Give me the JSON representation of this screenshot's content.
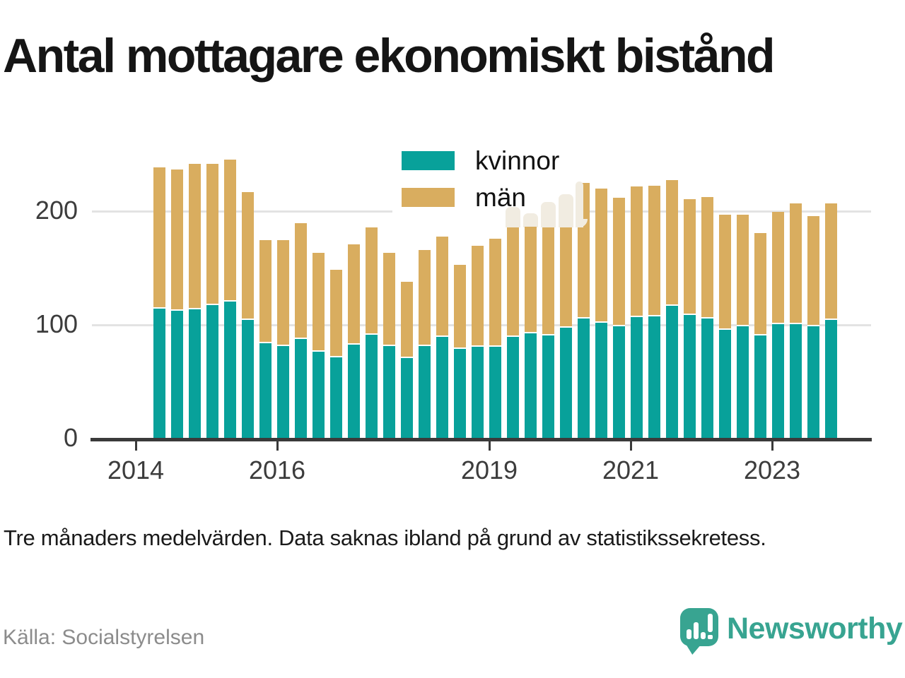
{
  "title": "Antal mottagare ekonomiskt bistånd",
  "subtitle": "Tre månaders medelvärden. Data saknas ibland på grund av statistikssekretess.",
  "source": "Källa: Socialstyrelsen",
  "brand": {
    "name": "Newsworthy",
    "icon": "newsworthy-speech-bubble-chart-icon"
  },
  "colors": {
    "kvinnor": "#08a19a",
    "man": "#d9ad5f",
    "watermark": "#f1ece1",
    "axis": "#3a3a3a",
    "grid": "#e3e3e3",
    "brand_teal": "#38a491",
    "muted_text": "#8c8c8c"
  },
  "legend": {
    "items": [
      {
        "label": "kvinnor"
      },
      {
        "label": "män"
      }
    ]
  },
  "chart_data": {
    "type": "bar",
    "stacked": true,
    "title": "Antal mottagare ekonomiskt bistånd",
    "xlabel": "",
    "ylabel": "",
    "ylim": [
      0,
      250
    ],
    "y_ticks": [
      0,
      100,
      200
    ],
    "x_tick_years": [
      2014,
      2016,
      2019,
      2021,
      2023
    ],
    "grid": "horizontal",
    "legend_position": "top-center",
    "categories": [
      "2014 Q2",
      "2014 Q3",
      "2014 Q4",
      "2015 Q1",
      "2015 Q2",
      "2015 Q3",
      "2015 Q4",
      "2016 Q1",
      "2016 Q2",
      "2016 Q3",
      "2016 Q4",
      "2017 Q1",
      "2017 Q2",
      "2017 Q3",
      "2017 Q4",
      "2018 Q1",
      "2018 Q2",
      "2018 Q3",
      "2018 Q4",
      "2019 Q1",
      "2019 Q2",
      "2019 Q3",
      "2019 Q4",
      "2020 Q1",
      "2020 Q2",
      "2020 Q3",
      "2020 Q4",
      "2021 Q1",
      "2021 Q2",
      "2021 Q3",
      "2021 Q4",
      "2022 Q1",
      "2022 Q2",
      "2022 Q3",
      "2022 Q4",
      "2023 Q1",
      "2023 Q2",
      "2023 Q3",
      "2023 Q4"
    ],
    "series": [
      {
        "name": "kvinnor",
        "values": [
          114,
          112,
          113,
          117,
          120,
          104,
          83,
          81,
          87,
          76,
          71,
          82,
          91,
          81,
          70,
          81,
          89,
          78,
          80,
          80,
          89,
          92,
          90,
          97,
          105,
          101,
          98,
          106,
          107,
          116,
          108,
          105,
          95,
          98,
          90,
          100,
          100,
          98,
          104
        ]
      },
      {
        "name": "män",
        "values": [
          124,
          124,
          128,
          124,
          125,
          112,
          91,
          93,
          102,
          87,
          77,
          88,
          94,
          82,
          67,
          84,
          88,
          74,
          89,
          95,
          96,
          94,
          95,
          88,
          119,
          118,
          113,
          115,
          115,
          111,
          102,
          107,
          101,
          98,
          90,
          99,
          106,
          97,
          102
        ]
      }
    ],
    "watermark_ghost_totals": [
      null,
      null,
      null,
      null,
      null,
      null,
      null,
      null,
      null,
      null,
      null,
      null,
      null,
      null,
      null,
      null,
      null,
      null,
      null,
      null,
      204,
      198,
      208,
      215,
      226,
      null,
      null,
      null,
      null,
      null,
      null,
      null,
      null,
      null,
      null,
      null,
      null,
      null,
      null
    ]
  }
}
